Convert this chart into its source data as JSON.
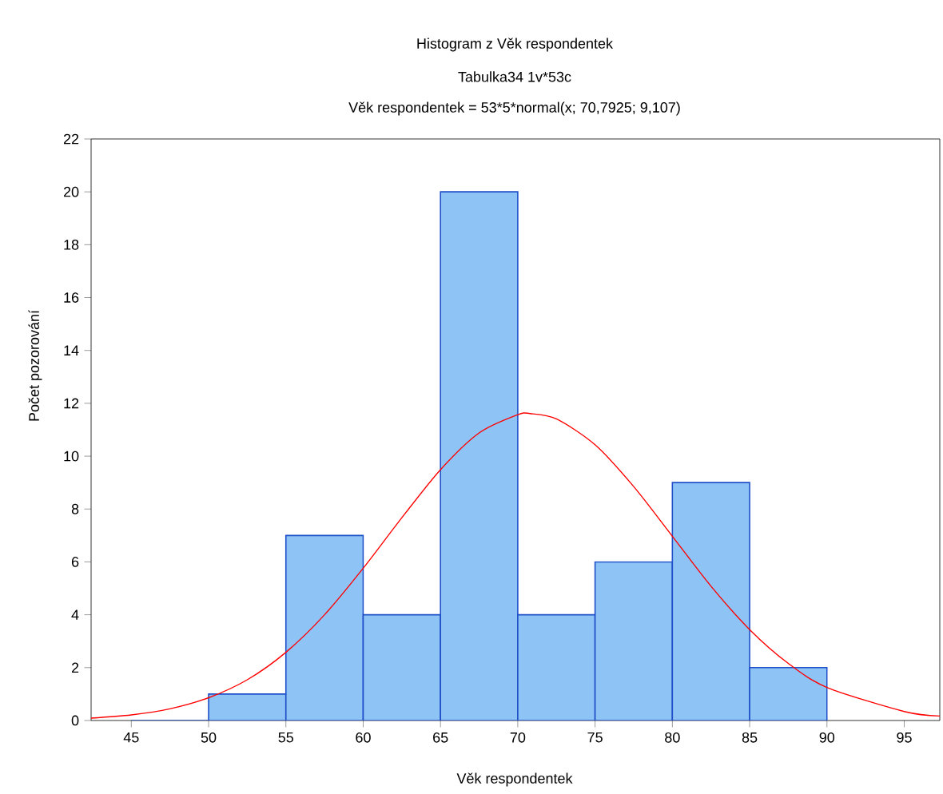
{
  "chart_data": {
    "type": "histogram",
    "title": "Histogram z Věk respondentek",
    "subtitle": "Tabulka34 1v*53c",
    "annotations": [
      "Věk respondentek = 53*5*normal(x; 70,7925; 9,107)"
    ],
    "xlabel": "Věk respondentek",
    "ylabel": "Počet pozorování",
    "bins": [
      45,
      50,
      55,
      60,
      65,
      70,
      75,
      80,
      85,
      90
    ],
    "values": [
      0,
      1,
      7,
      4,
      20,
      4,
      6,
      9,
      2
    ],
    "color": "#8ec3f5",
    "series": [
      {
        "type": "line",
        "color": "#ff0000",
        "x": [
          42.4,
          45,
          47.5,
          50,
          52.5,
          55,
          57.5,
          60,
          62.5,
          65,
          67.5,
          70,
          70.8,
          72.5,
          75,
          77.5,
          80,
          82.5,
          85,
          87.5,
          90,
          95,
          97.3
        ],
        "values": [
          0.09,
          0.21,
          0.44,
          0.86,
          1.54,
          2.58,
          4.0,
          5.76,
          7.67,
          9.49,
          10.88,
          11.57,
          11.61,
          11.41,
          10.43,
          8.85,
          6.97,
          5.08,
          3.44,
          2.16,
          1.25,
          0.34,
          0.17
        ]
      }
    ],
    "xlim": [
      42.4,
      97.3
    ],
    "ylim": [
      0,
      22
    ],
    "xticks": [
      45,
      50,
      55,
      60,
      65,
      70,
      75,
      80,
      85,
      90,
      95
    ],
    "yticks": [
      0,
      2,
      4,
      6,
      8,
      10,
      12,
      14,
      16,
      18,
      20,
      22
    ],
    "grid": false
  }
}
